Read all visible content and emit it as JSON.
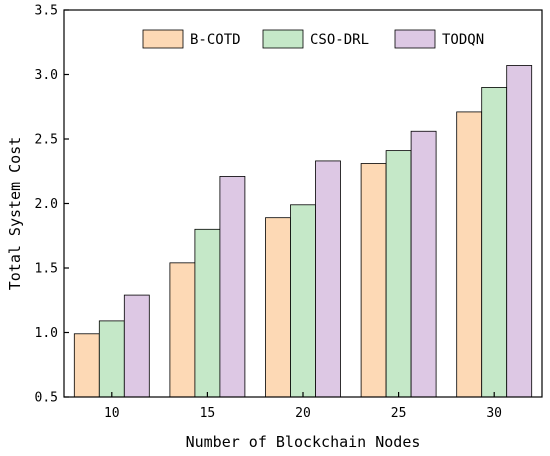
{
  "chart_data": {
    "type": "bar",
    "xlabel": "Number of Blockchain Nodes",
    "ylabel": "Total System Cost",
    "categories": [
      "10",
      "15",
      "20",
      "25",
      "30"
    ],
    "ylim": [
      0.5,
      3.5
    ],
    "yticks": [
      "0.5",
      "1.0",
      "1.5",
      "2.0",
      "2.5",
      "3.0",
      "3.5"
    ],
    "grid": false,
    "legend_position": "top",
    "series": [
      {
        "name": "B-COTD",
        "color": "#fdd9b5",
        "values": [
          0.99,
          1.54,
          1.89,
          2.31,
          2.71
        ]
      },
      {
        "name": "CSO-DRL",
        "color": "#c5e8c8",
        "values": [
          1.09,
          1.8,
          1.99,
          2.41,
          2.9
        ]
      },
      {
        "name": "TODQN",
        "color": "#ddc8e4",
        "values": [
          1.29,
          2.21,
          2.33,
          2.56,
          3.07
        ]
      }
    ]
  }
}
